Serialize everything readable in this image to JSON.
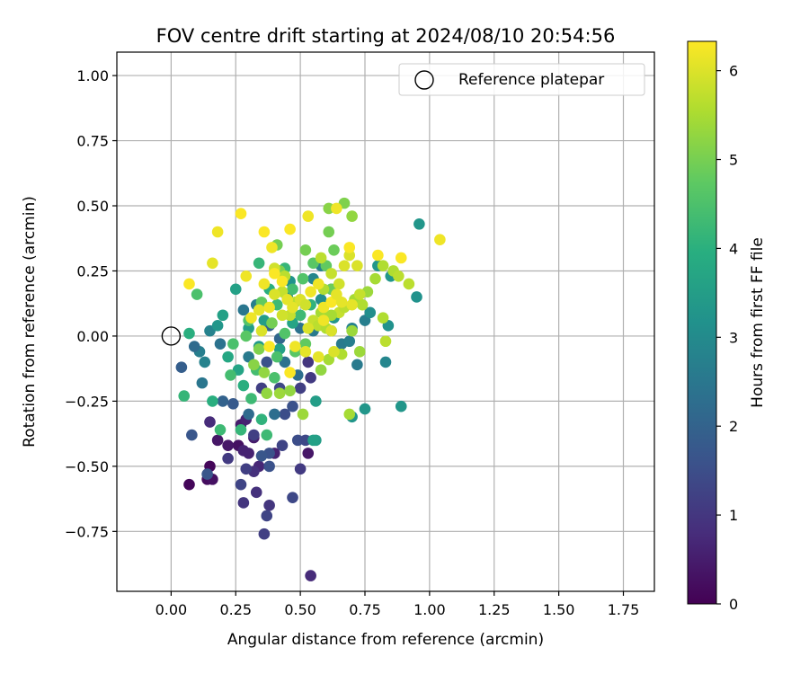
{
  "chart_data": {
    "type": "scatter",
    "title": "FOV centre drift starting at 2024/08/10 20:54:56",
    "xlabel": "Angular distance from reference (arcmin)",
    "ylabel": "Rotation from reference (arcmin)",
    "xlim": [
      -0.21,
      1.87
    ],
    "ylim": [
      -0.98,
      1.09
    ],
    "xticks": [
      0.0,
      0.25,
      0.5,
      0.75,
      1.0,
      1.25,
      1.5,
      1.75
    ],
    "xtick_labels": [
      "0.00",
      "0.25",
      "0.50",
      "0.75",
      "1.00",
      "1.25",
      "1.50",
      "1.75"
    ],
    "yticks": [
      1.0,
      0.75,
      0.5,
      0.25,
      0.0,
      -0.25,
      -0.5,
      -0.75
    ],
    "ytick_labels": [
      "1.00",
      "0.75",
      "0.50",
      "0.25",
      "0.00",
      "−0.25",
      "−0.50",
      "−0.75"
    ],
    "grid": true,
    "legend": {
      "placement": "top-right",
      "entries": [
        "Reference platepar"
      ]
    },
    "reference_point": {
      "x": 0.0,
      "y": 0.0,
      "label": "Reference platepar"
    },
    "colorbar": {
      "label": "Hours from first FF file",
      "colormap": "viridis",
      "range": [
        0,
        6.33
      ],
      "ticks": [
        0,
        1,
        2,
        3,
        4,
        5,
        6
      ],
      "tick_labels": [
        "0",
        "1",
        "2",
        "3",
        "4",
        "5",
        "6"
      ]
    },
    "series": [
      {
        "point_fields": [
          "x",
          "y",
          "hours"
        ],
        "points": [
          [
            0.07,
            -0.57,
            0.1
          ],
          [
            0.14,
            -0.55,
            0.2
          ],
          [
            0.16,
            -0.55,
            0.3
          ],
          [
            0.15,
            -0.5,
            0.1
          ],
          [
            0.26,
            -0.42,
            0.3
          ],
          [
            0.22,
            -0.42,
            0.4
          ],
          [
            0.18,
            -0.4,
            0.4
          ],
          [
            0.32,
            -0.39,
            0.5
          ],
          [
            0.53,
            -0.45,
            0.4
          ],
          [
            0.3,
            -0.45,
            0.6
          ],
          [
            0.28,
            -0.44,
            0.6
          ],
          [
            0.4,
            -0.45,
            0.6
          ],
          [
            0.34,
            -0.5,
            0.7
          ],
          [
            0.54,
            -0.92,
            0.8
          ],
          [
            0.27,
            -0.34,
            0.5
          ],
          [
            0.29,
            -0.32,
            0.6
          ],
          [
            0.32,
            -0.52,
            0.9
          ],
          [
            0.33,
            -0.6,
            0.9
          ],
          [
            0.28,
            -0.64,
            1.0
          ],
          [
            0.38,
            -0.65,
            1.0
          ],
          [
            0.36,
            -0.76,
            1.2
          ],
          [
            0.37,
            -0.69,
            1.3
          ],
          [
            0.47,
            -0.62,
            1.4
          ],
          [
            0.27,
            -0.57,
            1.3
          ],
          [
            0.5,
            -0.51,
            1.1
          ],
          [
            0.29,
            -0.51,
            1.2
          ],
          [
            0.22,
            -0.47,
            1.1
          ],
          [
            0.38,
            -0.5,
            1.6
          ],
          [
            0.43,
            -0.42,
            1.3
          ],
          [
            0.49,
            -0.4,
            1.5
          ],
          [
            0.38,
            -0.45,
            1.6
          ],
          [
            0.35,
            -0.46,
            1.7
          ],
          [
            0.44,
            -0.3,
            1.5
          ],
          [
            0.47,
            -0.27,
            1.6
          ],
          [
            0.32,
            -0.38,
            1.2
          ],
          [
            0.15,
            -0.33,
            0.8
          ],
          [
            0.08,
            -0.38,
            1.7
          ],
          [
            0.14,
            -0.53,
            1.7
          ],
          [
            0.04,
            -0.12,
            1.9
          ],
          [
            0.24,
            -0.26,
            1.8
          ],
          [
            0.2,
            -0.25,
            2.0
          ],
          [
            0.35,
            -0.2,
            1.2
          ],
          [
            0.42,
            -0.2,
            1.4
          ],
          [
            0.52,
            -0.4,
            1.4
          ],
          [
            0.37,
            -0.1,
            1.6
          ],
          [
            0.53,
            -0.1,
            1.0
          ],
          [
            0.5,
            -0.2,
            1.2
          ],
          [
            0.54,
            -0.16,
            1.1
          ],
          [
            0.42,
            -0.01,
            2.1
          ],
          [
            0.38,
            0.04,
            2.0
          ],
          [
            0.3,
            -0.3,
            2.2
          ],
          [
            0.4,
            -0.3,
            2.3
          ],
          [
            0.44,
            -0.1,
            2.4
          ],
          [
            0.49,
            -0.15,
            2.3
          ],
          [
            0.55,
            0.02,
            2.6
          ],
          [
            0.28,
            0.1,
            2.5
          ],
          [
            0.33,
            0.12,
            2.7
          ],
          [
            0.3,
            -0.08,
            2.6
          ],
          [
            0.5,
            0.03,
            2.4
          ],
          [
            0.55,
            0.22,
            2.9
          ],
          [
            0.58,
            0.27,
            2.8
          ],
          [
            0.45,
            0.15,
            3.0
          ],
          [
            0.11,
            -0.06,
            2.7
          ],
          [
            0.12,
            -0.18,
            2.5
          ],
          [
            0.15,
            0.02,
            2.8
          ],
          [
            0.19,
            -0.03,
            2.4
          ],
          [
            0.13,
            -0.1,
            2.8
          ],
          [
            0.09,
            -0.04,
            2.2
          ],
          [
            0.62,
            0.02,
            2.5
          ],
          [
            0.66,
            -0.03,
            2.6
          ],
          [
            0.69,
            -0.02,
            2.7
          ],
          [
            0.7,
            0.03,
            2.8
          ],
          [
            0.75,
            0.06,
            2.7
          ],
          [
            0.72,
            -0.11,
            2.6
          ],
          [
            0.83,
            -0.1,
            2.9
          ],
          [
            0.85,
            0.23,
            3.3
          ],
          [
            0.8,
            0.27,
            3.3
          ],
          [
            0.84,
            0.04,
            3.2
          ],
          [
            0.77,
            0.09,
            3.1
          ],
          [
            0.96,
            0.43,
            3.3
          ],
          [
            0.95,
            0.15,
            3.2
          ],
          [
            0.89,
            -0.27,
            3.3
          ],
          [
            0.75,
            -0.28,
            3.3
          ],
          [
            0.7,
            -0.31,
            3.3
          ],
          [
            0.56,
            -0.4,
            3.5
          ],
          [
            0.55,
            -0.4,
            3.6
          ],
          [
            0.56,
            -0.25,
            3.5
          ],
          [
            0.46,
            0.21,
            3.2
          ],
          [
            0.62,
            0.18,
            3.0
          ],
          [
            0.58,
            0.14,
            3.1
          ],
          [
            0.63,
            0.07,
            3.3
          ],
          [
            0.18,
            0.04,
            3.3
          ],
          [
            0.2,
            0.08,
            3.6
          ],
          [
            0.25,
            0.18,
            3.6
          ],
          [
            0.3,
            0.03,
            3.5
          ],
          [
            0.36,
            0.06,
            3.5
          ],
          [
            0.34,
            -0.04,
            3.4
          ],
          [
            0.42,
            -0.05,
            3.6
          ],
          [
            0.47,
            0.05,
            3.7
          ],
          [
            0.26,
            -0.13,
            3.7
          ],
          [
            0.22,
            -0.08,
            3.8
          ],
          [
            0.16,
            -0.25,
            4.0
          ],
          [
            0.05,
            -0.23,
            4.2
          ],
          [
            0.07,
            0.01,
            4.0
          ],
          [
            0.1,
            0.16,
            4.5
          ],
          [
            0.34,
            0.28,
            4.2
          ],
          [
            0.38,
            0.18,
            4.0
          ],
          [
            0.44,
            0.26,
            4.2
          ],
          [
            0.41,
            0.12,
            4.3
          ],
          [
            0.47,
            0.18,
            4.4
          ],
          [
            0.54,
            0.12,
            4.1
          ],
          [
            0.5,
            0.08,
            4.3
          ],
          [
            0.27,
            -0.36,
            4.2
          ],
          [
            0.19,
            -0.36,
            4.3
          ],
          [
            0.35,
            -0.32,
            4.1
          ],
          [
            0.37,
            -0.38,
            4.3
          ],
          [
            0.31,
            -0.24,
            4.3
          ],
          [
            0.28,
            -0.19,
            4.0
          ],
          [
            0.4,
            -0.16,
            4.5
          ],
          [
            0.33,
            -0.13,
            4.4
          ],
          [
            0.29,
            0.0,
            4.7
          ],
          [
            0.3,
            0.06,
            4.6
          ],
          [
            0.24,
            -0.03,
            4.5
          ],
          [
            0.23,
            -0.15,
            4.4
          ],
          [
            0.44,
            0.01,
            4.6
          ],
          [
            0.48,
            -0.06,
            4.7
          ],
          [
            0.52,
            -0.03,
            4.8
          ],
          [
            0.41,
            -0.08,
            4.5
          ],
          [
            0.51,
            0.22,
            4.6
          ],
          [
            0.55,
            0.28,
            4.7
          ],
          [
            0.6,
            0.27,
            4.8
          ],
          [
            0.62,
            0.18,
            4.9
          ],
          [
            0.63,
            0.33,
            4.9
          ],
          [
            0.61,
            0.4,
            5.0
          ],
          [
            0.67,
            0.51,
            5.1
          ],
          [
            0.7,
            0.46,
            5.3
          ],
          [
            0.61,
            0.49,
            5.2
          ],
          [
            0.52,
            0.33,
            5.0
          ],
          [
            0.41,
            0.35,
            5.0
          ],
          [
            0.42,
            0.25,
            5.1
          ],
          [
            0.39,
            0.05,
            5.0
          ],
          [
            0.35,
            0.13,
            4.8
          ],
          [
            0.34,
            -0.05,
            5.1
          ],
          [
            0.32,
            -0.11,
            5.2
          ],
          [
            0.36,
            -0.14,
            5.3
          ],
          [
            0.37,
            -0.22,
            5.3
          ],
          [
            0.42,
            -0.22,
            5.4
          ],
          [
            0.46,
            -0.21,
            5.3
          ],
          [
            0.51,
            -0.3,
            5.4
          ],
          [
            0.69,
            -0.3,
            5.5
          ],
          [
            0.73,
            -0.06,
            5.4
          ],
          [
            0.7,
            0.02,
            5.4
          ],
          [
            0.71,
            0.14,
            5.5
          ],
          [
            0.76,
            0.17,
            5.4
          ],
          [
            0.79,
            0.22,
            5.5
          ],
          [
            0.82,
            0.27,
            5.6
          ],
          [
            0.86,
            0.25,
            5.6
          ],
          [
            0.88,
            0.23,
            5.7
          ],
          [
            0.92,
            0.2,
            5.7
          ],
          [
            0.82,
            0.07,
            5.6
          ],
          [
            0.83,
            -0.02,
            5.7
          ],
          [
            0.74,
            0.12,
            5.6
          ],
          [
            0.73,
            0.16,
            5.8
          ],
          [
            0.65,
            0.09,
            5.8
          ],
          [
            0.67,
            0.11,
            5.7
          ],
          [
            0.58,
            0.09,
            5.5
          ],
          [
            0.61,
            -0.09,
            5.5
          ],
          [
            0.66,
            -0.07,
            5.6
          ],
          [
            0.58,
            -0.13,
            5.3
          ],
          [
            0.59,
            0.18,
            5.6
          ],
          [
            0.55,
            0.06,
            5.8
          ],
          [
            0.57,
            0.04,
            5.7
          ],
          [
            0.6,
            0.03,
            5.6
          ],
          [
            0.62,
            0.08,
            5.5
          ],
          [
            0.48,
            0.13,
            5.7
          ],
          [
            0.46,
            0.08,
            5.8
          ],
          [
            0.43,
            0.17,
            5.8
          ],
          [
            0.44,
            0.23,
            5.7
          ],
          [
            0.4,
            0.26,
            5.9
          ],
          [
            0.58,
            0.3,
            5.7
          ],
          [
            0.62,
            0.24,
            5.8
          ],
          [
            0.65,
            0.2,
            5.9
          ],
          [
            0.67,
            0.27,
            6.0
          ],
          [
            0.69,
            0.31,
            6.0
          ],
          [
            0.72,
            0.27,
            6.0
          ],
          [
            0.64,
            0.49,
            6.2
          ],
          [
            0.53,
            0.46,
            6.2
          ],
          [
            0.46,
            0.41,
            6.3
          ],
          [
            0.39,
            0.34,
            6.2
          ],
          [
            0.36,
            0.4,
            6.3
          ],
          [
            0.27,
            0.47,
            6.3
          ],
          [
            0.18,
            0.4,
            6.2
          ],
          [
            0.16,
            0.28,
            6.1
          ],
          [
            0.07,
            0.2,
            6.3
          ],
          [
            0.29,
            0.23,
            6.2
          ],
          [
            0.36,
            0.2,
            6.2
          ],
          [
            0.4,
            0.24,
            6.3
          ],
          [
            0.43,
            0.21,
            6.3
          ],
          [
            0.48,
            -0.04,
            6.2
          ],
          [
            0.38,
            -0.04,
            6.3
          ],
          [
            0.34,
            0.1,
            6.1
          ],
          [
            0.31,
            0.07,
            6.2
          ],
          [
            0.38,
            0.11,
            6.2
          ],
          [
            0.47,
            0.11,
            6.1
          ],
          [
            0.46,
            -0.14,
            6.3
          ],
          [
            0.59,
            0.11,
            6.2
          ],
          [
            0.62,
            0.13,
            6.3
          ],
          [
            0.66,
            0.13,
            6.1
          ],
          [
            0.69,
            0.34,
            6.3
          ],
          [
            0.8,
            0.31,
            6.3
          ],
          [
            0.89,
            0.3,
            6.3
          ],
          [
            1.04,
            0.37,
            6.2
          ],
          [
            0.54,
            0.17,
            6.2
          ],
          [
            0.64,
            0.16,
            6.1
          ],
          [
            0.57,
            0.2,
            6.2
          ],
          [
            0.62,
            0.02,
            6.0
          ],
          [
            0.7,
            0.12,
            6.1
          ],
          [
            0.59,
            0.06,
            6.2
          ],
          [
            0.53,
            0.03,
            6.0
          ],
          [
            0.52,
            -0.06,
            6.1
          ],
          [
            0.4,
            0.16,
            6.0
          ],
          [
            0.45,
            0.14,
            6.1
          ],
          [
            0.43,
            0.08,
            5.9
          ],
          [
            0.5,
            0.14,
            6.0
          ],
          [
            0.57,
            -0.08,
            6.1
          ],
          [
            0.52,
            0.12,
            5.9
          ],
          [
            0.35,
            0.02,
            6.0
          ],
          [
            0.63,
            -0.06,
            6.0
          ]
        ]
      }
    ]
  }
}
